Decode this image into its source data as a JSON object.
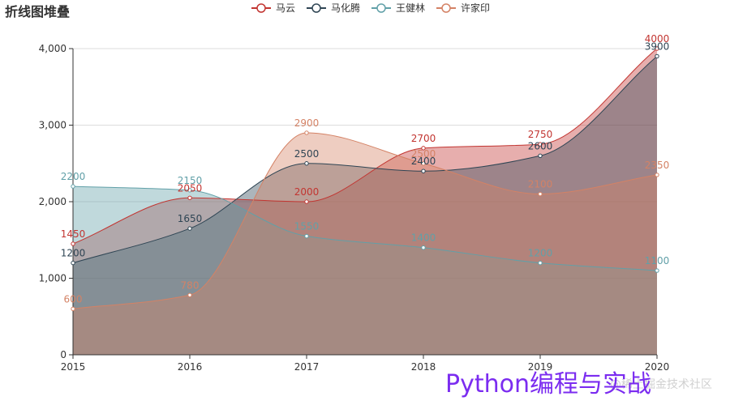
{
  "chart_data": {
    "type": "area",
    "title": "折线图堆叠",
    "categories": [
      "2015",
      "2016",
      "2017",
      "2018",
      "2019",
      "2020"
    ],
    "ylim": [
      0,
      4000
    ],
    "yticks": [
      0,
      1000,
      2000,
      3000,
      4000
    ],
    "ytick_labels": [
      "0",
      "1,000",
      "2,000",
      "3,000",
      "4,000"
    ],
    "smooth": true,
    "grid": "horizontal",
    "legend_position": "top-center",
    "series": [
      {
        "name": "马云",
        "color": "#c23531",
        "values": [
          1450,
          2050,
          2000,
          2700,
          2750,
          4000
        ]
      },
      {
        "name": "马化腾",
        "color": "#2f4554",
        "values": [
          1200,
          1650,
          2500,
          2400,
          2600,
          3900
        ]
      },
      {
        "name": "王健林",
        "color": "#61a0a8",
        "values": [
          2200,
          2150,
          1550,
          1400,
          1200,
          1100
        ]
      },
      {
        "name": "许家印",
        "color": "#d48265",
        "values": [
          600,
          780,
          2900,
          2500,
          2100,
          2350
        ]
      }
    ]
  },
  "watermark": {
    "lines": [
      "Python编程与实战",
      "@稀土掘金技术社区"
    ],
    "colors": [
      "#7b2cf0",
      "#d0d0d0"
    ]
  }
}
